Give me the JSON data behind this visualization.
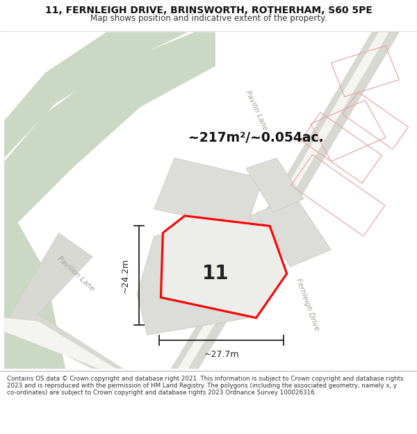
{
  "title_line1": "11, FERNLEIGH DRIVE, BRINSWORTH, ROTHERHAM, S60 5PE",
  "title_line2": "Map shows position and indicative extent of the property.",
  "footer_text": "Contains OS data © Crown copyright and database right 2021. This information is subject to Crown copyright and database rights 2023 and is reproduced with the permission of HM Land Registry. The polygons (including the associated geometry, namely x, y co-ordinates) are subject to Crown copyright and database rights 2023 Ordnance Survey 100026316.",
  "area_label": "~217m²/~0.054ac.",
  "number_label": "11",
  "dim_width": "~27.7m",
  "dim_height": "~24.2m",
  "road_label_pavilin": "Pavilin Lane",
  "road_label_pavilion": "Pavilion Lane",
  "road_label_fernleigh": "Fernleigh Drive",
  "map_bg": "#f0f0eb",
  "green_color": "#cad8c4",
  "road_gray": "#d8d8d2",
  "road_white": "#f4f4f0",
  "block_gray": "#dcdcd8",
  "block_edge": "#c4c4c0",
  "pink_edge": "#e8a8a8",
  "plot_fill": "#ededea",
  "plot_outline": "#ff0000",
  "dim_color": "#222222",
  "header_bg": "#ffffff",
  "footer_bg": "#ffffff",
  "title_color": "#111111",
  "subtitle_color": "#333333",
  "footer_color": "#333333",
  "road_text_color": "#a0a098"
}
